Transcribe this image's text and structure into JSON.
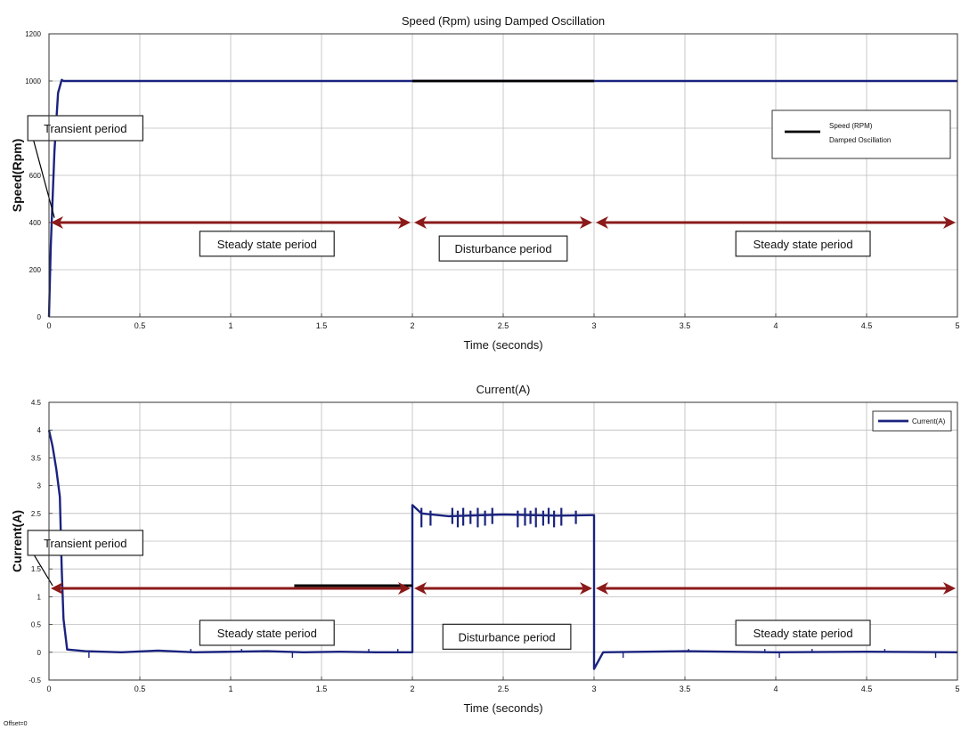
{
  "figure": {
    "footer_note": "Offset=0"
  },
  "chart_data": [
    {
      "type": "line",
      "title": "Speed (Rpm) using Damped Oscillation",
      "xlabel": "Time (seconds)",
      "ylabel": "Speed(Rpm)",
      "xlim": [
        0,
        5
      ],
      "ylim": [
        0,
        1200
      ],
      "xticks": [
        0,
        0.5,
        1,
        1.5,
        2,
        2.5,
        3,
        3.5,
        4,
        4.5,
        5
      ],
      "xticklabels": [
        "0",
        "0.5",
        "1",
        "1.5",
        "2",
        "2.5",
        "3",
        "3.5",
        "4",
        "4.5",
        "5"
      ],
      "yticks": [
        0,
        200,
        400,
        600,
        800,
        1000,
        1200
      ],
      "yticklabels": [
        "0",
        "200",
        "400",
        "600",
        "800",
        "1000",
        "1200"
      ],
      "grid": true,
      "legend": {
        "placement": "top-right",
        "entries": [
          "Speed (RPM)",
          "Damped Oscillation"
        ]
      },
      "series": [
        {
          "name": "Speed (RPM)",
          "color": "#1a237e",
          "x": [
            0,
            0.01,
            0.03,
            0.05,
            0.07,
            0.08,
            2.0,
            3.0,
            5.0
          ],
          "y": [
            0,
            300,
            700,
            950,
            1005,
            1000,
            1000,
            1000,
            1000
          ]
        }
      ],
      "segments": [
        {
          "x": [
            2.0,
            3.0
          ],
          "y": 1000,
          "color": "#000000"
        }
      ],
      "annotations": [
        {
          "text": "Transient period",
          "x": 0.2,
          "y": 800,
          "arrow_to": [
            0.03,
            420
          ]
        },
        {
          "text": "Steady state period",
          "x": 1.2,
          "y": 310
        },
        {
          "text": "Disturbance period",
          "x": 2.5,
          "y": 290
        },
        {
          "text": "Steady state period",
          "x": 4.15,
          "y": 310
        }
      ],
      "range_arrows": [
        {
          "x": [
            0,
            2.0
          ],
          "y": 400,
          "color": "#8b1a1a"
        },
        {
          "x": [
            2.0,
            3.0
          ],
          "y": 400,
          "color": "#8b1a1a"
        },
        {
          "x": [
            3.0,
            5.0
          ],
          "y": 400,
          "color": "#8b1a1a"
        }
      ]
    },
    {
      "type": "line",
      "title": "Current(A)",
      "xlabel": "Time (seconds)",
      "ylabel": "Current(A)",
      "xlim": [
        0,
        5
      ],
      "ylim": [
        -0.5,
        4.5
      ],
      "xticks": [
        0,
        0.5,
        1,
        1.5,
        2,
        2.5,
        3,
        3.5,
        4,
        4.5,
        5
      ],
      "xticklabels": [
        "0",
        "0.5",
        "1",
        "1.5",
        "2",
        "2.5",
        "3",
        "3.5",
        "4",
        "4.5",
        "5"
      ],
      "yticks": [
        -0.5,
        0,
        0.5,
        1,
        1.5,
        2,
        2.5,
        3,
        3.5,
        4,
        4.5
      ],
      "yticklabels": [
        "-0.5",
        "0",
        "0.5",
        "1",
        "1.5",
        "2",
        "2.5",
        "3",
        "3.5",
        "4",
        "4.5"
      ],
      "grid": true,
      "legend": {
        "placement": "top-right",
        "entries": [
          "Current(A)"
        ]
      },
      "series": [
        {
          "name": "Current(A)",
          "color": "#1a237e",
          "x": [
            0,
            0.02,
            0.04,
            0.06,
            0.07,
            0.08,
            0.1,
            0.2,
            0.4,
            0.6,
            0.8,
            1.0,
            1.2,
            1.4,
            1.6,
            1.8,
            1.99,
            2.0,
            2.0,
            2.05,
            2.2,
            2.5,
            2.8,
            2.99,
            3.0,
            3.0,
            3.05,
            3.5,
            4.0,
            4.5,
            5.0
          ],
          "y": [
            4.0,
            3.7,
            3.3,
            2.8,
            1.5,
            0.6,
            0.05,
            0.02,
            0.0,
            0.03,
            0.0,
            0.01,
            0.02,
            0.0,
            0.01,
            0.0,
            0.0,
            0.0,
            2.65,
            2.5,
            2.45,
            2.48,
            2.46,
            2.47,
            2.47,
            -0.3,
            0.0,
            0.02,
            0.0,
            0.01,
            0.0
          ]
        }
      ],
      "disturbance_spikes": [
        2.05,
        2.1,
        2.22,
        2.25,
        2.28,
        2.32,
        2.36,
        2.4,
        2.44,
        2.58,
        2.62,
        2.65,
        2.68,
        2.72,
        2.75,
        2.78,
        2.82,
        2.9
      ],
      "noise_spikes": [
        0.22,
        0.78,
        1.06,
        1.34,
        1.76,
        1.92,
        3.16,
        3.52,
        3.94,
        4.02,
        4.2,
        4.6,
        4.88
      ],
      "segments": [
        {
          "x": [
            1.35,
            2.0
          ],
          "y": 1.2,
          "color": "#000000"
        }
      ],
      "annotations": [
        {
          "text": "Transient period",
          "x": 0.2,
          "y": 1.97,
          "arrow_to": [
            0.02,
            1.2
          ]
        },
        {
          "text": "Steady state period",
          "x": 1.2,
          "y": 0.35
        },
        {
          "text": "Disturbance period",
          "x": 2.52,
          "y": 0.28
        },
        {
          "text": "Steady state period",
          "x": 4.15,
          "y": 0.35
        }
      ],
      "range_arrows": [
        {
          "x": [
            0,
            2.0
          ],
          "y": 1.15,
          "color": "#8b1a1a"
        },
        {
          "x": [
            2.0,
            3.0
          ],
          "y": 1.15,
          "color": "#8b1a1a"
        },
        {
          "x": [
            3.0,
            5.0
          ],
          "y": 1.15,
          "color": "#8b1a1a"
        }
      ]
    }
  ]
}
